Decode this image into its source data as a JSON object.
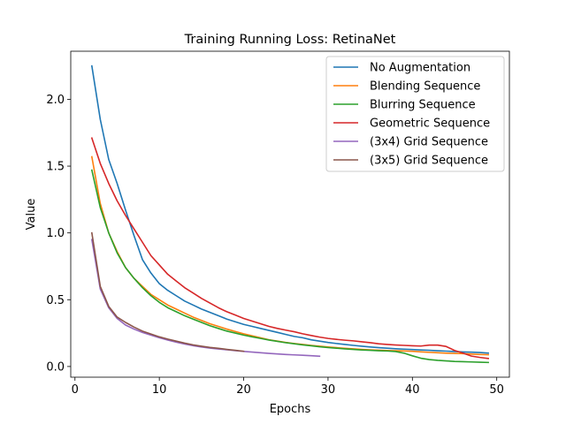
{
  "chart_data": {
    "type": "line",
    "title": "Training Running Loss: RetinaNet",
    "xlabel": "Epochs",
    "ylabel": "Value",
    "xlim": [
      -0.5,
      51.5
    ],
    "ylim": [
      -0.08,
      2.36
    ],
    "xticks": [
      0,
      10,
      20,
      30,
      40,
      50
    ],
    "yticks": [
      0.0,
      0.5,
      1.0,
      1.5,
      2.0
    ],
    "grid": false,
    "legend_position": "top-right",
    "series": [
      {
        "name": "No Augmentation",
        "color": "#1f77b4",
        "x": [
          2,
          3,
          4,
          5,
          6,
          7,
          8,
          9,
          10,
          11,
          12,
          13,
          14,
          15,
          16,
          17,
          18,
          19,
          20,
          21,
          22,
          23,
          24,
          25,
          26,
          27,
          28,
          29,
          30,
          31,
          32,
          33,
          34,
          35,
          36,
          37,
          38,
          39,
          40,
          41,
          42,
          43,
          44,
          45,
          46,
          47,
          48,
          49
        ],
        "y": [
          2.25,
          1.85,
          1.55,
          1.37,
          1.17,
          0.98,
          0.8,
          0.7,
          0.62,
          0.57,
          0.53,
          0.49,
          0.46,
          0.43,
          0.405,
          0.38,
          0.355,
          0.335,
          0.315,
          0.3,
          0.285,
          0.27,
          0.255,
          0.24,
          0.225,
          0.215,
          0.2,
          0.19,
          0.18,
          0.172,
          0.165,
          0.158,
          0.152,
          0.146,
          0.141,
          0.137,
          0.133,
          0.13,
          0.127,
          0.124,
          0.121,
          0.118,
          0.115,
          0.112,
          0.109,
          0.107,
          0.105,
          0.1
        ]
      },
      {
        "name": "Blending Sequence",
        "color": "#ff7f0e",
        "x": [
          2,
          3,
          4,
          5,
          6,
          7,
          8,
          9,
          10,
          11,
          12,
          13,
          14,
          15,
          16,
          17,
          18,
          19,
          20,
          21,
          22,
          23,
          24,
          25,
          26,
          27,
          28,
          29,
          30,
          31,
          32,
          33,
          34,
          35,
          36,
          37,
          38,
          39,
          40,
          41,
          42,
          43,
          44,
          45,
          46,
          47,
          48,
          49
        ],
        "y": [
          1.57,
          1.22,
          1.0,
          0.86,
          0.74,
          0.66,
          0.6,
          0.54,
          0.5,
          0.46,
          0.43,
          0.4,
          0.37,
          0.345,
          0.32,
          0.3,
          0.28,
          0.262,
          0.245,
          0.23,
          0.215,
          0.2,
          0.19,
          0.18,
          0.172,
          0.165,
          0.158,
          0.152,
          0.146,
          0.141,
          0.136,
          0.132,
          0.128,
          0.125,
          0.122,
          0.12,
          0.118,
          0.116,
          0.114,
          0.11,
          0.106,
          0.103,
          0.1,
          0.098,
          0.096,
          0.093,
          0.09,
          0.088
        ]
      },
      {
        "name": "Blurring Sequence",
        "color": "#2ca02c",
        "x": [
          2,
          3,
          4,
          5,
          6,
          7,
          8,
          9,
          10,
          11,
          12,
          13,
          14,
          15,
          16,
          17,
          18,
          19,
          20,
          21,
          22,
          23,
          24,
          25,
          26,
          27,
          28,
          29,
          30,
          31,
          32,
          33,
          34,
          35,
          36,
          37,
          38,
          39,
          40,
          41,
          42,
          43,
          44,
          45,
          46,
          47,
          48,
          49
        ],
        "y": [
          1.47,
          1.19,
          1.0,
          0.85,
          0.74,
          0.66,
          0.59,
          0.53,
          0.48,
          0.44,
          0.41,
          0.38,
          0.355,
          0.33,
          0.305,
          0.285,
          0.265,
          0.25,
          0.235,
          0.222,
          0.21,
          0.198,
          0.188,
          0.178,
          0.17,
          0.162,
          0.155,
          0.148,
          0.142,
          0.137,
          0.132,
          0.128,
          0.124,
          0.121,
          0.118,
          0.116,
          0.112,
          0.1,
          0.08,
          0.062,
          0.052,
          0.046,
          0.042,
          0.038,
          0.036,
          0.034,
          0.032,
          0.03
        ]
      },
      {
        "name": "Geometric Sequence",
        "color": "#d62728",
        "x": [
          2,
          3,
          4,
          5,
          6,
          7,
          8,
          9,
          10,
          11,
          12,
          13,
          14,
          15,
          16,
          17,
          18,
          19,
          20,
          21,
          22,
          23,
          24,
          25,
          26,
          27,
          28,
          29,
          30,
          31,
          32,
          33,
          34,
          35,
          36,
          37,
          38,
          39,
          40,
          41,
          42,
          43,
          44,
          45,
          46,
          47,
          48,
          49
        ],
        "y": [
          1.71,
          1.52,
          1.37,
          1.24,
          1.13,
          1.03,
          0.93,
          0.83,
          0.76,
          0.69,
          0.64,
          0.59,
          0.55,
          0.51,
          0.475,
          0.44,
          0.41,
          0.385,
          0.36,
          0.34,
          0.32,
          0.3,
          0.285,
          0.272,
          0.26,
          0.245,
          0.232,
          0.22,
          0.21,
          0.203,
          0.197,
          0.192,
          0.185,
          0.178,
          0.17,
          0.165,
          0.161,
          0.158,
          0.155,
          0.153,
          0.16,
          0.16,
          0.15,
          0.12,
          0.1,
          0.078,
          0.068,
          0.06
        ]
      },
      {
        "name": "(3x4) Grid Sequence",
        "color": "#9467bd",
        "x": [
          2,
          3,
          4,
          5,
          6,
          7,
          8,
          9,
          10,
          11,
          12,
          13,
          14,
          15,
          16,
          17,
          18,
          19,
          20,
          21,
          22,
          23,
          24,
          25,
          26,
          27,
          28,
          29
        ],
        "y": [
          0.95,
          0.58,
          0.44,
          0.36,
          0.31,
          0.28,
          0.255,
          0.235,
          0.215,
          0.198,
          0.182,
          0.168,
          0.156,
          0.146,
          0.138,
          0.131,
          0.125,
          0.119,
          0.113,
          0.108,
          0.103,
          0.098,
          0.094,
          0.09,
          0.087,
          0.084,
          0.081,
          0.077
        ]
      },
      {
        "name": "(3x5) Grid Sequence",
        "color": "#8c564b",
        "x": [
          2,
          3,
          4,
          5,
          6,
          7,
          8,
          9,
          10,
          11,
          12,
          13,
          14,
          15,
          16,
          17,
          18,
          19,
          20
        ],
        "y": [
          1.0,
          0.6,
          0.45,
          0.37,
          0.33,
          0.295,
          0.265,
          0.243,
          0.222,
          0.205,
          0.19,
          0.175,
          0.162,
          0.152,
          0.143,
          0.136,
          0.128,
          0.121,
          0.114
        ]
      }
    ]
  }
}
